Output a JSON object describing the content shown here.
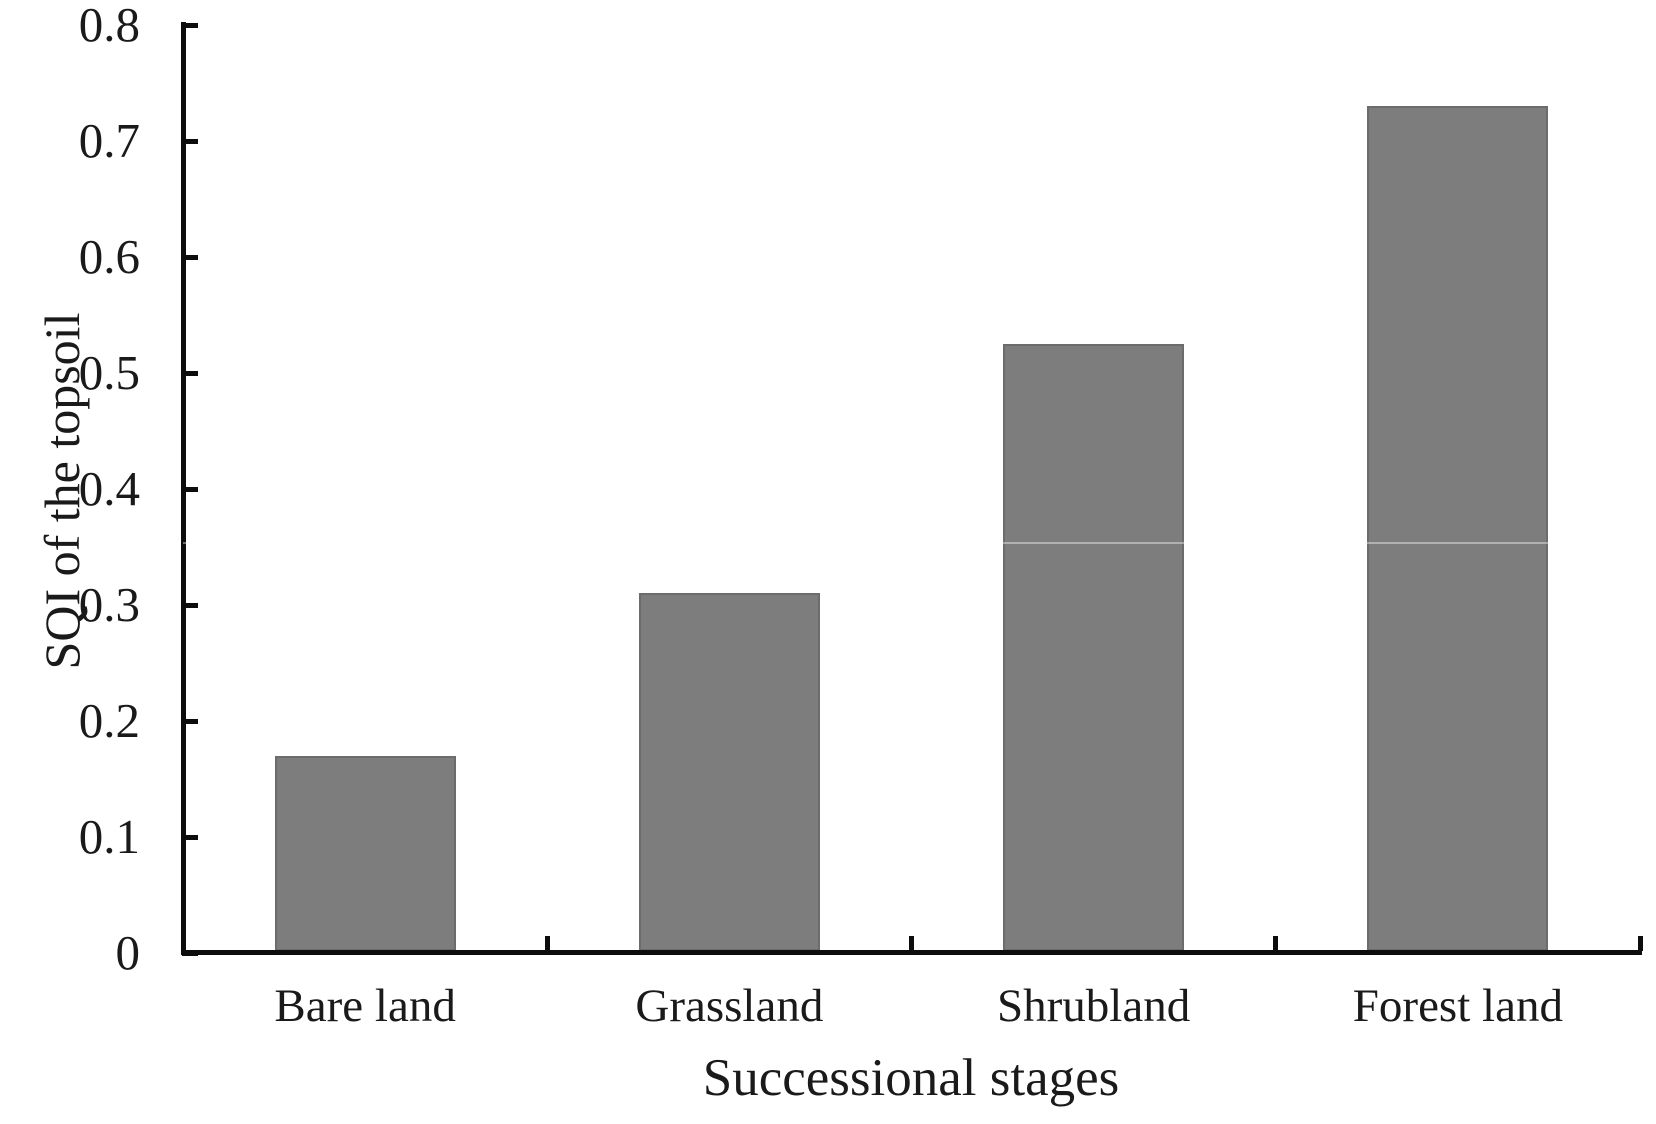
{
  "chart_data": {
    "type": "bar",
    "title": "",
    "categories": [
      "Bare land",
      "Grassland",
      "Shrubland",
      "Forest land"
    ],
    "values": [
      0.17,
      0.31,
      0.525,
      0.73
    ],
    "xlabel": "Successional stages",
    "ylabel": "SQI of the topsoil",
    "ylim": [
      0,
      0.8
    ],
    "yticks": [
      0,
      0.1,
      0.2,
      0.3,
      0.4,
      0.5,
      0.6,
      0.7,
      0.8
    ],
    "ytick_labels": [
      "0",
      "0.1",
      "0.2",
      "0.3",
      "0.4",
      "0.5",
      "0.6",
      "0.7",
      "0.8"
    ],
    "grid": false,
    "legend": false,
    "bar_color": "#7d7d7d",
    "bar_border_color": "#6c6c6c",
    "axis_color": "#0d0d0d",
    "text_color": "#1a1a1a",
    "background_color": "#ffffff"
  }
}
